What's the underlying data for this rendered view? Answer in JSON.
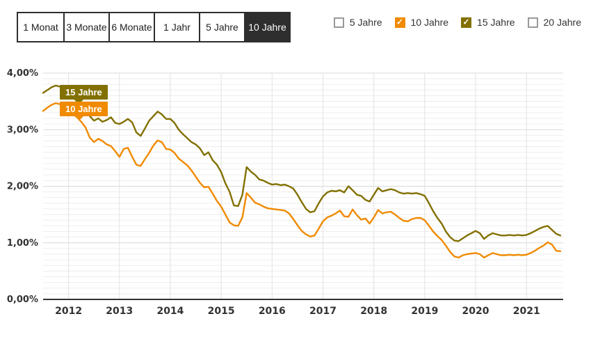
{
  "controls": {
    "range_buttons": [
      {
        "label": "1 Monat",
        "selected": false
      },
      {
        "label": "3 Monate",
        "selected": false
      },
      {
        "label": "6 Monate",
        "selected": false
      },
      {
        "label": "1 Jahr",
        "selected": false
      },
      {
        "label": "5 Jahre",
        "selected": false
      },
      {
        "label": "10 Jahre",
        "selected": true
      }
    ],
    "series_toggles": [
      {
        "label": "5 Jahre",
        "checked": false,
        "color": null
      },
      {
        "label": "10 Jahre",
        "checked": true,
        "color": "#F08A00"
      },
      {
        "label": "15 Jahre",
        "checked": true,
        "color": "#827000"
      },
      {
        "label": "20 Jahre",
        "checked": false,
        "color": null
      }
    ]
  },
  "colors": {
    "axis": "#333333",
    "grid_minor": "#ededed",
    "grid_major": "#d7d7d7",
    "grid_vertical": "#e2e2e2",
    "button_dark": "#2e2e2e",
    "accent_orange": "#F08A00",
    "accent_olive": "#827000"
  },
  "chart_data": {
    "type": "line",
    "x_start": "2011-07",
    "x_interval": "month",
    "ylim": [
      0,
      4
    ],
    "y_ticks": [
      {
        "value": 0,
        "label": "0,00%"
      },
      {
        "value": 1,
        "label": "1,00%"
      },
      {
        "value": 2,
        "label": "2,00%"
      },
      {
        "value": 3,
        "label": "3,00%"
      },
      {
        "value": 4,
        "label": "4,00%"
      }
    ],
    "x_tick_labels": [
      "2012",
      "2013",
      "2014",
      "2015",
      "2016",
      "2017",
      "2018",
      "2019",
      "2020",
      "2021"
    ],
    "grid": {
      "minor_step_pct": 0.1,
      "major_step_pct": 1.0
    },
    "series": [
      {
        "name": "15 Jahre",
        "color": "#827000",
        "values": [
          3.65,
          3.7,
          3.75,
          3.78,
          3.76,
          3.71,
          3.65,
          3.58,
          3.5,
          3.42,
          3.34,
          3.24,
          3.16,
          3.2,
          3.14,
          3.17,
          3.22,
          3.12,
          3.1,
          3.14,
          3.19,
          3.13,
          2.95,
          2.89,
          3.02,
          3.16,
          3.24,
          3.32,
          3.27,
          3.19,
          3.19,
          3.12,
          3.0,
          2.92,
          2.85,
          2.78,
          2.74,
          2.67,
          2.55,
          2.6,
          2.46,
          2.38,
          2.25,
          2.05,
          1.9,
          1.66,
          1.65,
          1.85,
          2.34,
          2.26,
          2.2,
          2.12,
          2.1,
          2.06,
          2.03,
          2.04,
          2.02,
          2.03,
          2.0,
          1.96,
          1.85,
          1.72,
          1.6,
          1.54,
          1.56,
          1.7,
          1.82,
          1.89,
          1.92,
          1.91,
          1.93,
          1.89,
          2.0,
          1.93,
          1.85,
          1.83,
          1.76,
          1.73,
          1.85,
          1.97,
          1.91,
          1.93,
          1.95,
          1.93,
          1.89,
          1.87,
          1.88,
          1.87,
          1.88,
          1.86,
          1.83,
          1.7,
          1.56,
          1.44,
          1.34,
          1.2,
          1.1,
          1.04,
          1.03,
          1.08,
          1.13,
          1.17,
          1.21,
          1.17,
          1.07,
          1.13,
          1.17,
          1.15,
          1.13,
          1.13,
          1.14,
          1.13,
          1.14,
          1.13,
          1.14,
          1.17,
          1.21,
          1.25,
          1.28,
          1.3,
          1.23,
          1.16,
          1.13
        ]
      },
      {
        "name": "10 Jahre",
        "color": "#F08A00",
        "values": [
          3.33,
          3.39,
          3.44,
          3.47,
          3.45,
          3.4,
          3.34,
          3.28,
          3.22,
          3.14,
          3.04,
          2.86,
          2.78,
          2.84,
          2.8,
          2.74,
          2.71,
          2.62,
          2.52,
          2.66,
          2.68,
          2.52,
          2.38,
          2.36,
          2.48,
          2.59,
          2.72,
          2.81,
          2.78,
          2.66,
          2.65,
          2.59,
          2.49,
          2.43,
          2.37,
          2.28,
          2.17,
          2.06,
          1.98,
          1.99,
          1.87,
          1.74,
          1.64,
          1.5,
          1.36,
          1.31,
          1.3,
          1.45,
          1.88,
          1.8,
          1.71,
          1.68,
          1.64,
          1.61,
          1.6,
          1.59,
          1.58,
          1.57,
          1.52,
          1.42,
          1.31,
          1.21,
          1.15,
          1.11,
          1.13,
          1.25,
          1.38,
          1.45,
          1.48,
          1.52,
          1.57,
          1.47,
          1.46,
          1.59,
          1.49,
          1.41,
          1.43,
          1.34,
          1.45,
          1.58,
          1.52,
          1.54,
          1.55,
          1.5,
          1.44,
          1.39,
          1.38,
          1.42,
          1.44,
          1.44,
          1.4,
          1.3,
          1.2,
          1.12,
          1.05,
          0.95,
          0.84,
          0.76,
          0.74,
          0.78,
          0.8,
          0.81,
          0.82,
          0.8,
          0.74,
          0.78,
          0.82,
          0.8,
          0.78,
          0.78,
          0.79,
          0.78,
          0.79,
          0.78,
          0.79,
          0.82,
          0.86,
          0.91,
          0.95,
          1.01,
          0.97,
          0.86,
          0.85
        ]
      }
    ]
  }
}
